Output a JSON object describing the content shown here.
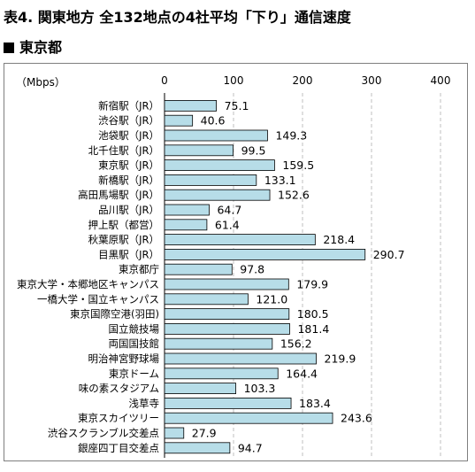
{
  "page": {
    "title": "表4. 関東地方 全132地点の4社平均「下り」通信速度",
    "section": "東京都"
  },
  "chart_data": {
    "type": "bar",
    "orientation": "horizontal",
    "title": "",
    "unit_label": "（Mbps）",
    "xlim": [
      0,
      400
    ],
    "ticks": [
      0,
      100,
      200,
      300,
      400
    ],
    "grid": "dashed vertical",
    "bar_color": "#b7dde8",
    "bar_stroke": "#000000",
    "categories": [
      "新宿駅（JR）",
      "渋谷駅（JR）",
      "池袋駅（JR）",
      "北千住駅（JR）",
      "東京駅（JR）",
      "新橋駅（JR）",
      "高田馬場駅（JR）",
      "品川駅（JR）",
      "押上駅（都営）",
      "秋葉原駅（JR）",
      "目黒駅（JR）",
      "東京都庁",
      "東京大学・本郷地区キャンパス",
      "一橋大学・国立キャンパス",
      "東京国際空港(羽田)",
      "国立競技場",
      "両国国技館",
      "明治神宮野球場",
      "東京ドーム",
      "味の素スタジアム",
      "浅草寺",
      "東京スカイツリー",
      "渋谷スクランブル交差点",
      "銀座四丁目交差点"
    ],
    "values": [
      75.1,
      40.6,
      149.3,
      99.5,
      159.5,
      133.1,
      152.6,
      64.7,
      61.4,
      218.4,
      290.7,
      97.8,
      179.9,
      121.0,
      180.5,
      181.4,
      156.2,
      219.9,
      164.4,
      103.3,
      183.4,
      243.6,
      27.9,
      94.7
    ],
    "value_labels": [
      "75.1",
      "40.6",
      "149.3",
      "99.5",
      "159.5",
      "133.1",
      "152.6",
      "64.7",
      "61.4",
      "218.4",
      "290.7",
      "97.8",
      "179.9",
      "121.0",
      "180.5",
      "181.4",
      "156.2",
      "219.9",
      "164.4",
      "103.3",
      "183.4",
      "243.6",
      "27.9",
      "94.7"
    ]
  }
}
